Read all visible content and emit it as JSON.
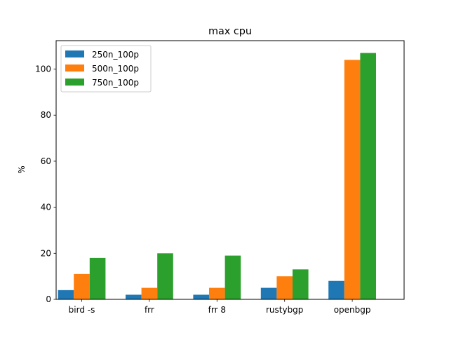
{
  "chart_data": {
    "type": "bar",
    "title": "max cpu",
    "xlabel": "",
    "ylabel": "%",
    "categories": [
      "bird -s",
      "frr",
      "frr 8",
      "rustybgp",
      "openbgp"
    ],
    "series": [
      {
        "name": "250n_100p",
        "color": "#1f77b4",
        "values": [
          4,
          2,
          2,
          5,
          8
        ]
      },
      {
        "name": "500n_100p",
        "color": "#ff7f0e",
        "values": [
          11,
          5,
          5,
          10,
          104
        ]
      },
      {
        "name": "750n_100p",
        "color": "#2ca02c",
        "values": [
          18,
          20,
          19,
          13,
          107
        ]
      }
    ],
    "ylim": [
      0,
      112.35
    ],
    "yticks": [
      0,
      20,
      40,
      60,
      80,
      100
    ],
    "grid": false,
    "legend_position": "top-left"
  }
}
